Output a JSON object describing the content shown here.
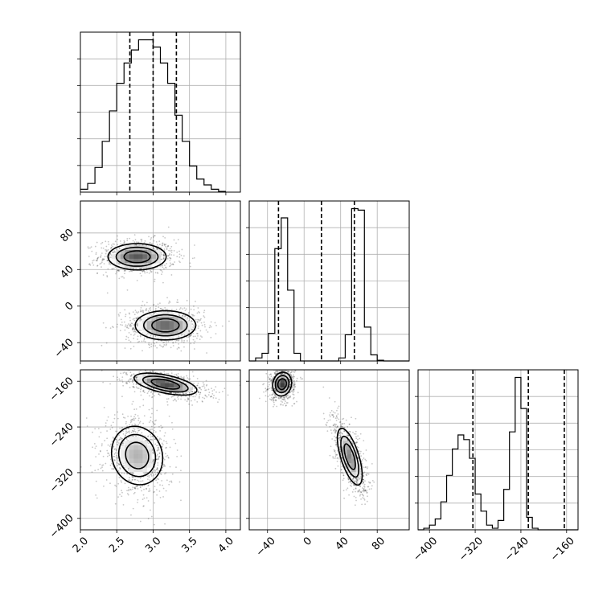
{
  "chart_data": {
    "type": "corner",
    "parameters": [
      {
        "name": "",
        "range": [
          2.0,
          4.2
        ],
        "ticks": [
          "2.0",
          "2.5",
          "3.0",
          "3.5",
          "4.0"
        ],
        "tick_values": [
          2.0,
          2.5,
          3.0,
          3.5,
          4.0
        ],
        "quantiles": [
          2.68,
          3.0,
          3.32
        ],
        "hist": {
          "start": 2.0,
          "width": 0.1,
          "values": [
            0.2,
            0.6,
            1.7,
            3.5,
            5.6,
            7.5,
            8.9,
            9.8,
            10.5,
            10.5,
            10.0,
            8.9,
            7.5,
            5.3,
            3.5,
            1.8,
            0.9,
            0.5,
            0.2,
            0.05
          ]
        }
      },
      {
        "name": "",
        "range": [
          -60,
          115
        ],
        "ticks": [
          "-40",
          "0",
          "40",
          "80"
        ],
        "tick_values": [
          -40,
          0,
          40,
          80
        ],
        "quantiles": [
          -28,
          19,
          55
        ],
        "hist": {
          "start": -60,
          "width": 7,
          "values": [
            0,
            0.2,
            0.5,
            1.8,
            7.3,
            9.3,
            4.6,
            0.5,
            0,
            0,
            0,
            0,
            0,
            0,
            0.2,
            1.7,
            9.9,
            9.8,
            2.2,
            0.4,
            0.05,
            0,
            0,
            0,
            0
          ]
        }
      },
      {
        "name": "",
        "range": [
          -420,
          -140
        ],
        "ticks": [
          "-400",
          "-320",
          "-240",
          "-160"
        ],
        "tick_values": [
          -400,
          -320,
          -240,
          -160
        ],
        "quantiles": [
          -324,
          -227,
          -164
        ],
        "hist": {
          "start": -420,
          "width": 10,
          "values": [
            0,
            0.1,
            0.3,
            0.7,
            1.8,
            3.5,
            5.2,
            6.1,
            5.8,
            4.6,
            2.3,
            1.2,
            0.3,
            0.1,
            0.6,
            2.6,
            6.3,
            9.8,
            7.8,
            0.8,
            0.1,
            0,
            0,
            0,
            0,
            0,
            0,
            0
          ]
        }
      }
    ],
    "clusters_2d": {
      "1_0": [
        {
          "mean": [
            2.78,
            54
          ],
          "sd": [
            0.25,
            9
          ],
          "corr": 0.0,
          "peak": 0.85
        },
        {
          "mean": [
            3.17,
            -21
          ],
          "sd": [
            0.26,
            10
          ],
          "corr": 0.0,
          "peak": 0.8
        }
      ],
      "2_0": [
        {
          "mean": [
            3.17,
            -165
          ],
          "sd": [
            0.27,
            12
          ],
          "corr": -0.55,
          "peak": 0.9
        },
        {
          "mean": [
            2.78,
            -290
          ],
          "sd": [
            0.22,
            32
          ],
          "corr": -0.1,
          "peak": 0.55
        }
      ],
      "2_1": [
        {
          "mean": [
            -24,
            -165
          ],
          "sd": [
            6.5,
            13
          ],
          "corr": 0.1,
          "peak": 0.95
        },
        {
          "mean": [
            50,
            -292
          ],
          "sd": [
            8.5,
            31
          ],
          "corr": -0.65,
          "peak": 0.7
        }
      ]
    }
  }
}
